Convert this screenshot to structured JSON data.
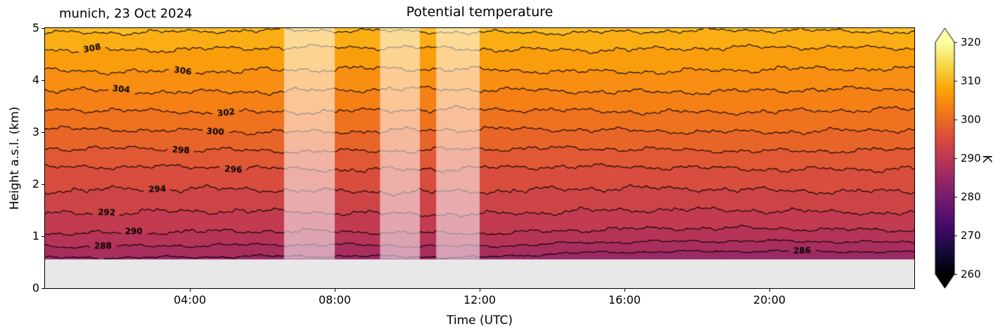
{
  "header": {
    "title": "Potential temperature",
    "annotation": "munich, 23 Oct 2024"
  },
  "axes": {
    "xlabel": "Time (UTC)",
    "ylabel": "Height a.s.l. (km)",
    "x_ticks": [
      {
        "hours": 4,
        "label": "04:00"
      },
      {
        "hours": 8,
        "label": "08:00"
      },
      {
        "hours": 12,
        "label": "12:00"
      },
      {
        "hours": 16,
        "label": "16:00"
      },
      {
        "hours": 20,
        "label": "20:00"
      }
    ],
    "y_ticks": [
      {
        "km": 0,
        "label": "0"
      },
      {
        "km": 1,
        "label": "1"
      },
      {
        "km": 2,
        "label": "2"
      },
      {
        "km": 3,
        "label": "3"
      },
      {
        "km": 4,
        "label": "4"
      },
      {
        "km": 5,
        "label": "5"
      }
    ]
  },
  "colorbar": {
    "label": "K",
    "ticks": [
      {
        "value": 260,
        "label": "260"
      },
      {
        "value": 270,
        "label": "270"
      },
      {
        "value": 280,
        "label": "280"
      },
      {
        "value": 290,
        "label": "290"
      },
      {
        "value": 300,
        "label": "300"
      },
      {
        "value": 310,
        "label": "310"
      },
      {
        "value": 320,
        "label": "320"
      }
    ]
  },
  "chart_data": {
    "type": "contour",
    "title": "Potential temperature",
    "station_date": "munich, 23 Oct 2024",
    "xlabel": "Time (UTC)",
    "ylabel": "Height a.s.l. (km)",
    "x_range_hours": [
      0,
      24
    ],
    "y_range_km": [
      0,
      5
    ],
    "ground_km": 0.56,
    "ground_color": "#e8e8e8",
    "colorbar_label": "K",
    "colorbar_range": [
      260,
      320
    ],
    "colorbar_extend": "both",
    "colormap_name": "inferno",
    "colormap": [
      [
        0.0,
        "#000004"
      ],
      [
        0.1,
        "#160b39"
      ],
      [
        0.2,
        "#420a68"
      ],
      [
        0.3,
        "#6a176e"
      ],
      [
        0.4,
        "#932667"
      ],
      [
        0.5,
        "#bc3754"
      ],
      [
        0.6,
        "#dd513a"
      ],
      [
        0.7,
        "#f37819"
      ],
      [
        0.8,
        "#fca50a"
      ],
      [
        0.9,
        "#f6d746"
      ],
      [
        1.0,
        "#fcffa4"
      ]
    ],
    "level_step_K": 2,
    "levels_K": [
      286,
      288,
      290,
      292,
      294,
      296,
      298,
      300,
      302,
      304,
      306,
      308,
      310
    ],
    "profile_height_km_theta_K": [
      [
        0.56,
        285.6
      ],
      [
        0.78,
        287.7
      ],
      [
        1.07,
        290.0
      ],
      [
        1.45,
        292.0
      ],
      [
        1.88,
        294.0
      ],
      [
        2.31,
        296.0
      ],
      [
        2.66,
        298.0
      ],
      [
        3.03,
        300.0
      ],
      [
        3.41,
        302.0
      ],
      [
        3.8,
        304.0
      ],
      [
        4.19,
        306.0
      ],
      [
        4.61,
        308.0
      ],
      [
        5.0,
        310.4
      ]
    ],
    "contour_labels": [
      {
        "level": 308,
        "t": 1.3
      },
      {
        "level": 306,
        "t": 3.8
      },
      {
        "level": 304,
        "t": 2.1
      },
      {
        "level": 302,
        "t": 5.0
      },
      {
        "level": 300,
        "t": 4.7
      },
      {
        "level": 298,
        "t": 3.75
      },
      {
        "level": 296,
        "t": 5.2
      },
      {
        "level": 294,
        "t": 3.1
      },
      {
        "level": 292,
        "t": 1.7
      },
      {
        "level": 290,
        "t": 2.45
      },
      {
        "level": 288,
        "t": 1.6
      },
      {
        "level": 286,
        "t": 20.9
      }
    ],
    "contour_line": {
      "color": "#000000",
      "width": 1.1
    },
    "band_overlay": {
      "color": "#ffffff",
      "alpha": 0.55,
      "ranges_hours": [
        [
          6.6,
          8.0
        ],
        [
          9.25,
          10.35
        ],
        [
          10.8,
          12.0
        ]
      ]
    },
    "wiggles": [
      [
        0.15,
        0.5,
        1.5,
        0.0
      ],
      [
        0.13,
        2.1,
        7.1,
        0.0
      ],
      [
        0.11,
        5.3,
        -3.7,
        1.3
      ],
      [
        0.08,
        11.9,
        8.3,
        4.1
      ],
      [
        0.06,
        29.0,
        9.0,
        2.0
      ]
    ],
    "surface_cooling": {
      "start_hour": 12,
      "ramp_hours": 3,
      "delta_K": -1.3,
      "depth_km": 0.4
    }
  }
}
